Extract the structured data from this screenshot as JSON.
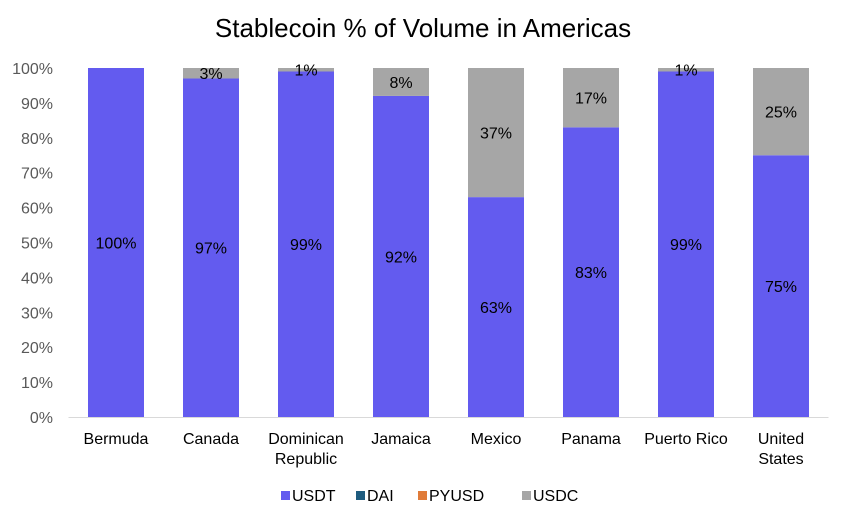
{
  "chart_data": {
    "type": "bar",
    "stacked": true,
    "title": "Stablecoin % of Volume in Americas",
    "xlabel": "",
    "ylabel": "",
    "ylim": [
      0,
      100
    ],
    "yticks": [
      "0%",
      "10%",
      "20%",
      "30%",
      "40%",
      "50%",
      "60%",
      "70%",
      "80%",
      "90%",
      "100%"
    ],
    "grid": false,
    "legend_position": "bottom",
    "categories": [
      [
        "Bermuda"
      ],
      [
        "Canada"
      ],
      [
        "Dominican",
        "Republic"
      ],
      [
        "Jamaica"
      ],
      [
        "Mexico"
      ],
      [
        "Panama"
      ],
      [
        "Puerto Rico"
      ],
      [
        "United",
        "States"
      ]
    ],
    "series": [
      {
        "name": "USDT",
        "color": "#635BEF",
        "values": [
          100,
          97,
          99,
          92,
          63,
          83,
          99,
          75
        ],
        "labels": [
          "100%",
          "97%",
          "99%",
          "92%",
          "63%",
          "83%",
          "99%",
          "75%"
        ]
      },
      {
        "name": "DAI",
        "color": "#1F5C7F",
        "values": [
          0,
          0,
          0,
          0,
          0,
          0,
          0,
          0
        ],
        "labels": []
      },
      {
        "name": "PYUSD",
        "color": "#E07B39",
        "values": [
          0,
          0,
          0,
          0,
          0,
          0,
          0,
          0
        ],
        "labels": []
      },
      {
        "name": "USDC",
        "color": "#A6A6A6",
        "values": [
          0,
          3,
          1,
          8,
          37,
          17,
          1,
          25
        ],
        "labels": [
          "",
          "3%",
          "1%",
          "8%",
          "37%",
          "17%",
          "1%",
          "25%"
        ]
      }
    ]
  }
}
